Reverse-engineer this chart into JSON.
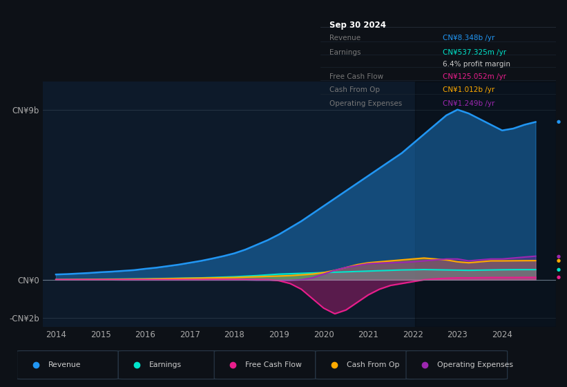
{
  "bg_color": "#0d1117",
  "plot_bg_color": "#0d1a2a",
  "ylim_min": -2.5,
  "ylim_max": 10.5,
  "ytick_vals": [
    -2.0,
    0.0,
    9.0
  ],
  "ytick_labels": [
    "-CN¥2b",
    "CN¥0",
    "CN¥9b"
  ],
  "xtick_labels": [
    "2014",
    "2015",
    "2016",
    "2017",
    "2018",
    "2019",
    "2020",
    "2021",
    "2022",
    "2023",
    "2024"
  ],
  "legend": [
    {
      "label": "Revenue",
      "color": "#2196f3"
    },
    {
      "label": "Earnings",
      "color": "#00e5cc"
    },
    {
      "label": "Free Cash Flow",
      "color": "#e91e8c"
    },
    {
      "label": "Cash From Op",
      "color": "#ffaa00"
    },
    {
      "label": "Operating Expenses",
      "color": "#9c27b0"
    }
  ],
  "tooltip": {
    "date": "Sep 30 2024",
    "revenue": "CN¥8.348b",
    "revenue_color": "#2196f3",
    "earnings": "CN¥537.325m",
    "earnings_color": "#00e5cc",
    "profit_margin": "6.4%",
    "free_cash_flow": "CN¥125.052m",
    "free_cash_flow_color": "#e91e8c",
    "cash_from_op": "CN¥1.012b",
    "cash_from_op_color": "#ffaa00",
    "op_expenses": "CN¥1.249b",
    "op_expenses_color": "#9c27b0"
  },
  "x_years": [
    2014.0,
    2014.25,
    2014.5,
    2014.75,
    2015.0,
    2015.25,
    2015.5,
    2015.75,
    2016.0,
    2016.25,
    2016.5,
    2016.75,
    2017.0,
    2017.25,
    2017.5,
    2017.75,
    2018.0,
    2018.25,
    2018.5,
    2018.75,
    2019.0,
    2019.25,
    2019.5,
    2019.75,
    2020.0,
    2020.25,
    2020.5,
    2020.75,
    2021.0,
    2021.25,
    2021.5,
    2021.75,
    2022.0,
    2022.25,
    2022.5,
    2022.75,
    2023.0,
    2023.25,
    2023.5,
    2023.75,
    2024.0,
    2024.25,
    2024.5,
    2024.75
  ],
  "revenue": [
    0.28,
    0.3,
    0.33,
    0.36,
    0.4,
    0.43,
    0.47,
    0.51,
    0.58,
    0.64,
    0.72,
    0.8,
    0.9,
    1.0,
    1.12,
    1.25,
    1.4,
    1.6,
    1.85,
    2.1,
    2.4,
    2.75,
    3.1,
    3.5,
    3.9,
    4.3,
    4.7,
    5.1,
    5.5,
    5.9,
    6.3,
    6.7,
    7.2,
    7.7,
    8.2,
    8.7,
    9.0,
    8.8,
    8.5,
    8.2,
    7.9,
    8.0,
    8.2,
    8.348
  ],
  "earnings": [
    0.01,
    0.015,
    0.02,
    0.025,
    0.03,
    0.035,
    0.04,
    0.045,
    0.05,
    0.06,
    0.07,
    0.08,
    0.09,
    0.1,
    0.12,
    0.14,
    0.16,
    0.19,
    0.22,
    0.26,
    0.3,
    0.32,
    0.34,
    0.36,
    0.38,
    0.4,
    0.42,
    0.44,
    0.46,
    0.48,
    0.5,
    0.52,
    0.53,
    0.54,
    0.53,
    0.52,
    0.51,
    0.5,
    0.51,
    0.52,
    0.53,
    0.535,
    0.537,
    0.537
  ],
  "free_cash_flow": [
    0.005,
    0.005,
    0.005,
    0.005,
    0.005,
    0.005,
    0.01,
    0.01,
    0.01,
    0.01,
    0.01,
    0.01,
    0.01,
    0.01,
    0.02,
    0.02,
    0.02,
    0.02,
    0.02,
    0.01,
    -0.05,
    -0.2,
    -0.5,
    -1.0,
    -1.5,
    -1.8,
    -1.6,
    -1.2,
    -0.8,
    -0.5,
    -0.3,
    -0.2,
    -0.1,
    0.0,
    0.05,
    0.08,
    0.1,
    0.1,
    0.11,
    0.12,
    0.12,
    0.12,
    0.125,
    0.125
  ],
  "cash_from_op": [
    0.01,
    0.012,
    0.015,
    0.018,
    0.02,
    0.025,
    0.03,
    0.035,
    0.04,
    0.05,
    0.06,
    0.07,
    0.08,
    0.09,
    0.1,
    0.11,
    0.12,
    0.14,
    0.16,
    0.18,
    0.2,
    0.22,
    0.26,
    0.3,
    0.38,
    0.5,
    0.65,
    0.8,
    0.9,
    0.95,
    1.0,
    1.05,
    1.1,
    1.15,
    1.1,
    1.05,
    0.95,
    0.9,
    0.95,
    1.0,
    1.0,
    1.005,
    1.01,
    1.012
  ],
  "op_expenses": [
    -0.005,
    -0.005,
    -0.005,
    -0.005,
    -0.005,
    -0.005,
    -0.01,
    -0.01,
    -0.01,
    -0.01,
    -0.01,
    -0.01,
    -0.01,
    -0.01,
    -0.01,
    -0.01,
    -0.01,
    -0.01,
    -0.02,
    -0.02,
    -0.03,
    -0.03,
    0.0,
    0.1,
    0.3,
    0.5,
    0.65,
    0.75,
    0.85,
    0.88,
    0.9,
    0.92,
    0.95,
    1.0,
    1.05,
    1.1,
    1.1,
    1.0,
    1.05,
    1.1,
    1.1,
    1.15,
    1.2,
    1.249
  ]
}
